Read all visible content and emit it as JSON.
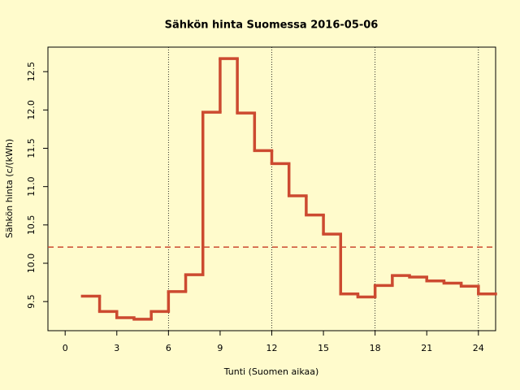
{
  "chart_data": {
    "type": "step",
    "title": "Sähkön hinta Suomessa 2016-05-06",
    "x_label": "Tunti (Suomen aikaa)",
    "y_label": "Sähkön hinta (c/(kWh)",
    "x": [
      1,
      2,
      3,
      4,
      5,
      6,
      7,
      8,
      9,
      10,
      11,
      12,
      13,
      14,
      15,
      16,
      17,
      18,
      19,
      20,
      21,
      22,
      23,
      24
    ],
    "values": [
      9.57,
      9.37,
      9.29,
      9.27,
      9.37,
      9.63,
      9.85,
      11.97,
      12.67,
      11.96,
      11.47,
      11.3,
      10.88,
      10.63,
      10.38,
      9.6,
      9.56,
      9.71,
      9.84,
      9.82,
      9.77,
      9.74,
      9.7,
      9.6
    ],
    "color": "#cc4a30",
    "mean_line": 10.21,
    "vlines": [
      6,
      12,
      18,
      24
    ],
    "xlim": [
      -1,
      25
    ],
    "ylim": [
      9.12,
      12.82
    ],
    "xticks": [
      0,
      3,
      6,
      9,
      12,
      15,
      18,
      21,
      24
    ],
    "yticks": [
      9.5,
      {
        "value": 10,
        "label": "10.0"
      },
      10.5,
      {
        "value": 11,
        "label": "11.0"
      },
      11.5,
      {
        "value": 12,
        "label": "12.0"
      },
      12.5
    ]
  }
}
